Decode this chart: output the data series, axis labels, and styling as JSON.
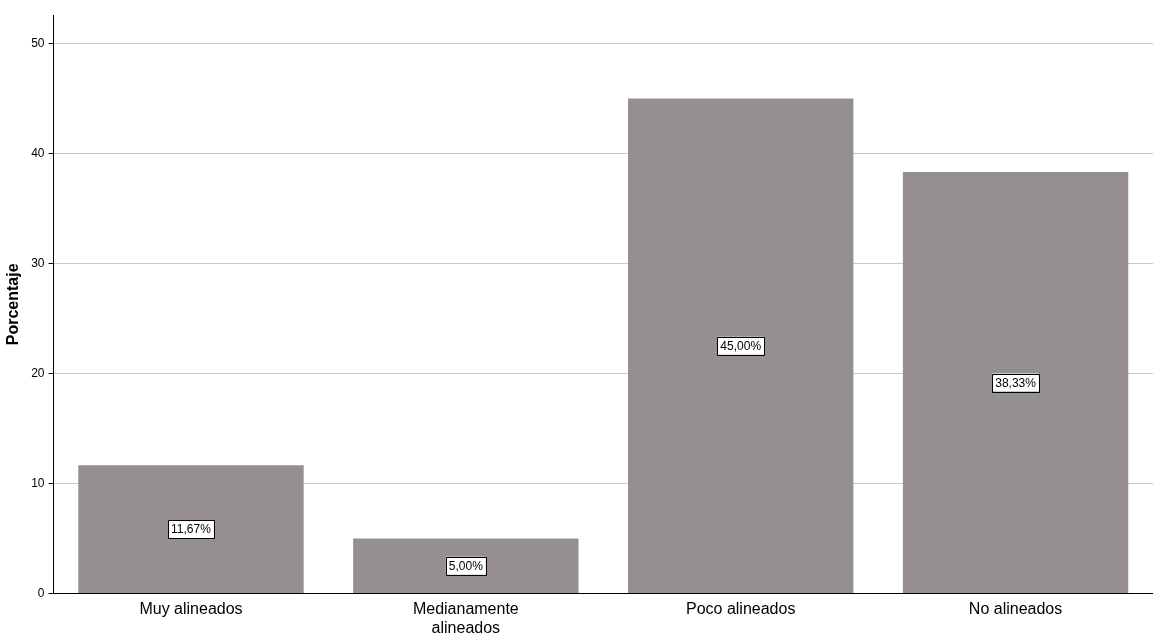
{
  "chart_data": {
    "type": "bar",
    "ylabel": "Porcentaje",
    "categories": [
      "Muy alineados",
      "Medianamente alineados",
      "Poco alineados",
      "No alineados"
    ],
    "values": [
      11.67,
      5.0,
      45.0,
      38.33
    ],
    "value_labels": [
      "11,67%",
      "5,00%",
      "45,00%",
      "38,33%"
    ],
    "color": "#958f8f",
    "ylim": [
      0,
      52.6
    ],
    "yticks": [
      0,
      10,
      20,
      30,
      40,
      50
    ],
    "grid": "y",
    "legend": false
  }
}
